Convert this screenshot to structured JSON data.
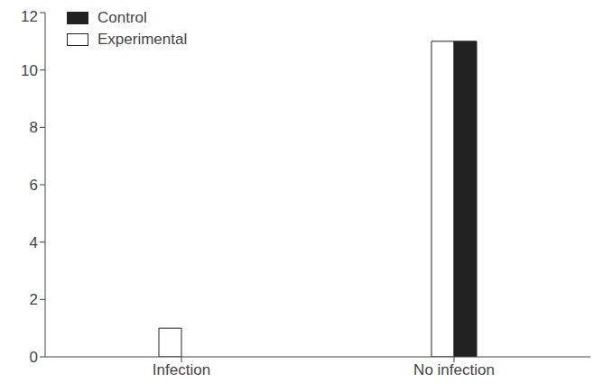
{
  "chart_data": {
    "type": "bar",
    "categories": [
      "Infection",
      "No infection"
    ],
    "series": [
      {
        "name": "Experimental",
        "color": "#ffffff",
        "values": [
          1,
          11
        ]
      },
      {
        "name": "Control",
        "color": "#222222",
        "values": [
          0,
          11
        ]
      }
    ],
    "ylim": [
      0,
      12
    ],
    "yticks": [
      0,
      2,
      4,
      6,
      8,
      10,
      12
    ],
    "grid": false,
    "legend": "upper left"
  }
}
